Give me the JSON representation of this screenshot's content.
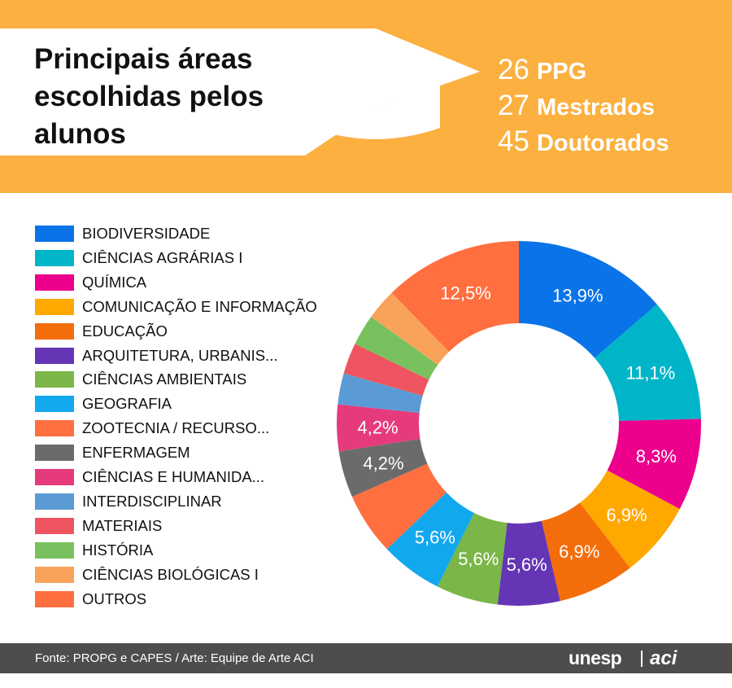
{
  "header": {
    "title_line1": "Principais áreas",
    "title_line2": "escolhidas pelos",
    "title_line3": "alunos",
    "stats": [
      {
        "number": "26",
        "label": "PPG"
      },
      {
        "number": "27",
        "label": "Mestrados"
      },
      {
        "number": "45",
        "label": "Doutorados"
      }
    ],
    "icon": "graduation-cap-icon",
    "background_color": "#fbb040"
  },
  "chart_data": {
    "type": "pie",
    "style": "donut",
    "legend_position": "left",
    "categories": [
      "BIODIVERSIDADE",
      "CIÊNCIAS AGRÁRIAS I",
      "QUÍMICA",
      "COMUNICAÇÃO E INFORMAÇÃO",
      "EDUCAÇÃO",
      "ARQUITETURA, URBANIS...",
      "CIÊNCIAS AMBIENTAIS",
      "GEOGRAFIA",
      "ZOOTECNIA / RECURSO...",
      "ENFERMAGEM",
      "CIÊNCIAS E HUMANIDA...",
      "INTERDISCIPLINAR",
      "MATERIAIS",
      "HISTÓRIA",
      "CIÊNCIAS BIOLÓGICAS I",
      "OUTROS"
    ],
    "values": [
      13.9,
      11.1,
      8.3,
      6.9,
      6.9,
      5.6,
      5.6,
      5.6,
      5.6,
      4.2,
      4.2,
      2.8,
      2.8,
      2.8,
      2.8,
      12.5
    ],
    "data_labels": [
      "13,9%",
      "11,1%",
      "8,3%",
      "6,9%",
      "6,9%",
      "5,6%",
      "5,6%",
      "5,6%",
      "",
      "4,2%",
      "4,2%",
      "",
      "",
      "",
      "",
      "12,5%"
    ],
    "colors": [
      "#0a73e8",
      "#00b5c8",
      "#ec008c",
      "#ffa800",
      "#f46d0b",
      "#6436b5",
      "#7ab648",
      "#12a8ee",
      "#ff6f3f",
      "#6b6b6b",
      "#e53b7c",
      "#5b9bd5",
      "#ef5560",
      "#79c05e",
      "#f9a35a",
      "#ff6f3f"
    ]
  },
  "footer": {
    "source": "Fonte: PROPG e CAPES / Arte: Equipe de Arte ACI",
    "brand_unesp": "unesp",
    "brand_aci": "aci"
  }
}
